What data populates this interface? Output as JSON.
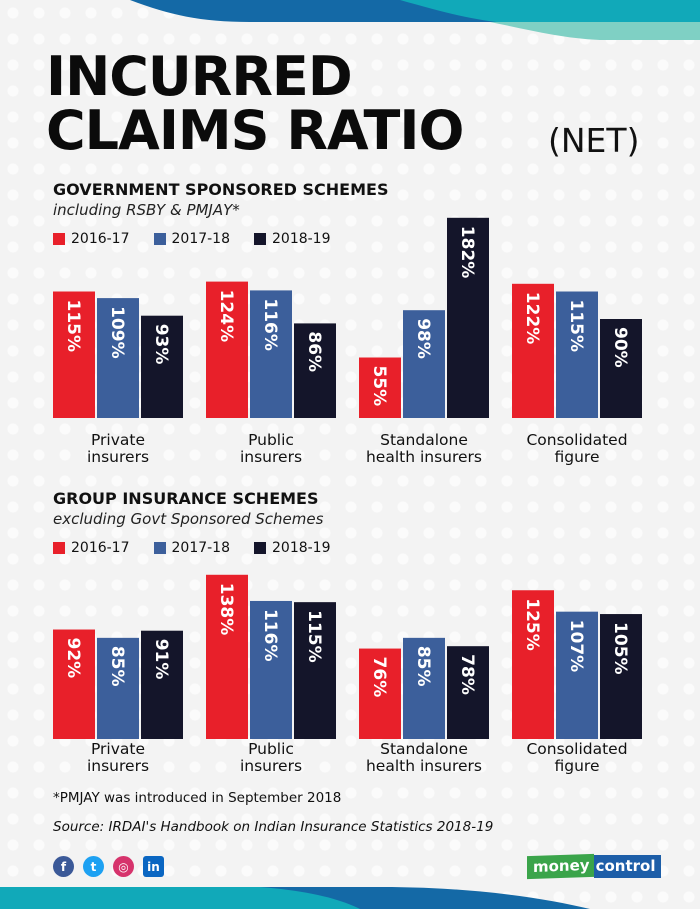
{
  "title": {
    "line1": "INCURRED",
    "line2": "CLAIMS RATIO",
    "suffix": "(NET)"
  },
  "colors": {
    "2016-17": "#e8202a",
    "2017-18": "#3c5f9b",
    "2018-19": "#14152a"
  },
  "chart_data": [
    {
      "type": "bar",
      "title": "GOVERNMENT SPONSORED SCHEMES",
      "subtitle": "including RSBY & PMJAY*",
      "categories": [
        "Private insurers",
        "Public insurers",
        "Standalone health insurers",
        "Consolidated figure"
      ],
      "category_lines": [
        [
          "Private",
          "insurers"
        ],
        [
          "Public",
          "insurers"
        ],
        [
          "Standalone",
          "health insurers"
        ],
        [
          "Consolidated",
          "figure"
        ]
      ],
      "series": [
        {
          "name": "2016-17",
          "values": [
            115,
            124,
            55,
            122
          ]
        },
        {
          "name": "2017-18",
          "values": [
            109,
            116,
            98,
            115
          ]
        },
        {
          "name": "2018-19",
          "values": [
            93,
            86,
            182,
            90
          ]
        }
      ],
      "unit": "%",
      "legend": "top-left",
      "grid": false
    },
    {
      "type": "bar",
      "title": "GROUP INSURANCE SCHEMES",
      "subtitle": "excluding Govt Sponsored Schemes",
      "categories": [
        "Private insurers",
        "Public insurers",
        "Standalone health insurers",
        "Consolidated figure"
      ],
      "category_lines": [
        [
          "Private",
          "insurers"
        ],
        [
          "Public",
          "insurers"
        ],
        [
          "Standalone",
          "health insurers"
        ],
        [
          "Consolidated",
          "figure"
        ]
      ],
      "series": [
        {
          "name": "2016-17",
          "values": [
            92,
            138,
            76,
            125
          ]
        },
        {
          "name": "2017-18",
          "values": [
            85,
            116,
            85,
            107
          ]
        },
        {
          "name": "2018-19",
          "values": [
            91,
            115,
            78,
            105
          ]
        }
      ],
      "unit": "%",
      "legend": "top-left",
      "grid": false
    }
  ],
  "footnote": "*PMJAY was introduced in September 2018",
  "source": "Source: IRDAI's Handbook on Indian Insurance Statistics 2018-19",
  "social": [
    {
      "name": "facebook",
      "glyph": "f",
      "color": "#3b5998"
    },
    {
      "name": "twitter",
      "glyph": "t",
      "color": "#1da1f2"
    },
    {
      "name": "instagram",
      "glyph": "◎",
      "color": "#d6336c"
    },
    {
      "name": "linkedin",
      "glyph": "in",
      "color": "#0a66c2"
    }
  ],
  "logo": {
    "part1": "money",
    "part2": "control"
  }
}
